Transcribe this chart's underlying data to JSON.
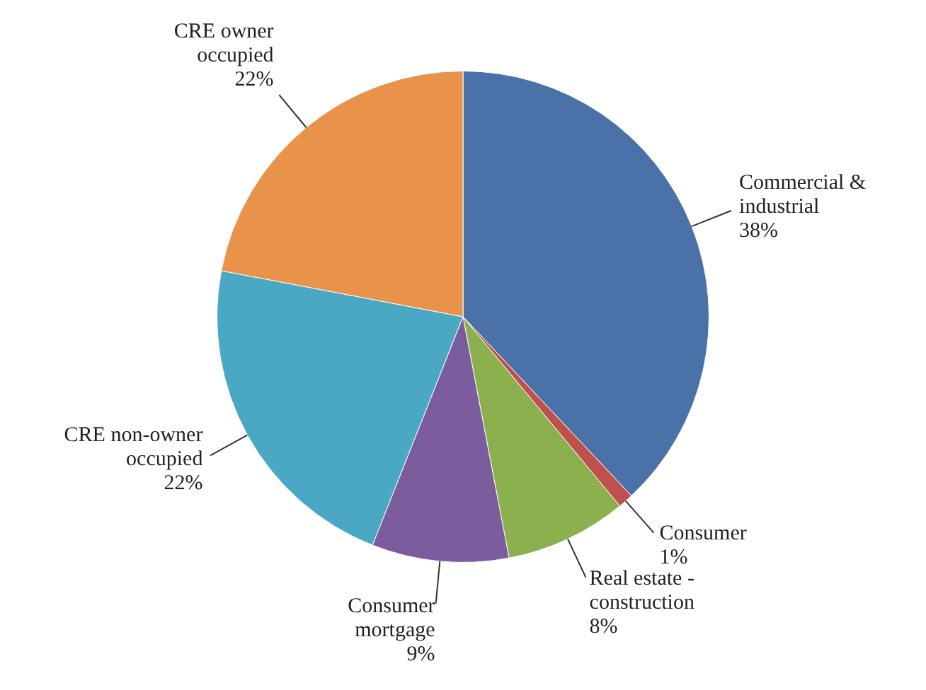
{
  "chart_data": {
    "type": "pie",
    "categories": [
      "Commercial & industrial",
      "Consumer",
      "Real estate - construction",
      "Consumer mortgage",
      "CRE non-owner occupied",
      "CRE owner occupied"
    ],
    "values": [
      38,
      1,
      8,
      9,
      22,
      22
    ],
    "colors": [
      "#4a72a8",
      "#c0504d",
      "#8db04f",
      "#7b5d9e",
      "#4aa8c4",
      "#e8924a"
    ],
    "value_labels": [
      "38%",
      "1%",
      "8%",
      "9%",
      "22%",
      "22%"
    ]
  }
}
